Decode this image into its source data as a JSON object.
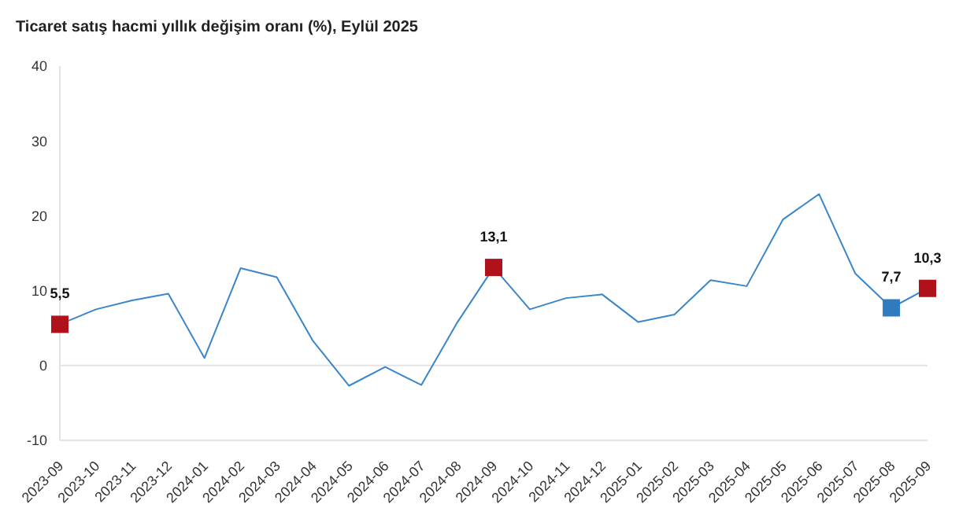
{
  "chart_data": {
    "type": "line",
    "title": "Ticaret satış hacmi yıllık değişim oranı (%), Eylül 2025",
    "categories": [
      "2023-09",
      "2023-10",
      "2023-11",
      "2023-12",
      "2024-01",
      "2024-02",
      "2024-03",
      "2024-04",
      "2024-05",
      "2024-06",
      "2024-07",
      "2024-08",
      "2024-09",
      "2024-10",
      "2024-11",
      "2024-12",
      "2025-01",
      "2025-02",
      "2025-03",
      "2025-04",
      "2025-05",
      "2025-06",
      "2025-07",
      "2025-08",
      "2025-09"
    ],
    "series": [
      {
        "color": "#3a86c8",
        "marker": "none",
        "values": [
          5.5,
          7.5,
          8.7,
          9.6,
          1.0,
          13.0,
          11.8,
          3.3,
          -2.7,
          -0.2,
          -2.6,
          5.8,
          13.1,
          7.5,
          9.0,
          9.5,
          5.8,
          6.8,
          11.4,
          10.6,
          19.5,
          22.9,
          12.3,
          7.7,
          10.3
        ]
      },
      {
        "type": "scatter",
        "marker": "square",
        "values": [
          5.5,
          null,
          null,
          null,
          null,
          null,
          null,
          null,
          null,
          null,
          null,
          null,
          13.1,
          null,
          null,
          null,
          null,
          null,
          null,
          null,
          null,
          null,
          null,
          7.7,
          10.3
        ],
        "colors": [
          "#b0121b",
          null,
          null,
          null,
          null,
          null,
          null,
          null,
          null,
          null,
          null,
          null,
          "#b0121b",
          null,
          null,
          null,
          null,
          null,
          null,
          null,
          null,
          null,
          null,
          "#2e7bbf",
          "#b0121b"
        ],
        "value_labels": [
          "5,5",
          null,
          null,
          null,
          null,
          null,
          null,
          null,
          null,
          null,
          null,
          null,
          "13,1",
          null,
          null,
          null,
          null,
          null,
          null,
          null,
          null,
          null,
          null,
          "7,7",
          "10,3"
        ]
      }
    ],
    "ylim": [
      -10,
      40
    ],
    "yticks": [
      -10,
      0,
      10,
      20,
      30,
      40
    ],
    "grid": false,
    "legend": false,
    "ref_lines": [
      {
        "axis": "y",
        "value": 0,
        "color": "#e3e3e3"
      }
    ]
  }
}
